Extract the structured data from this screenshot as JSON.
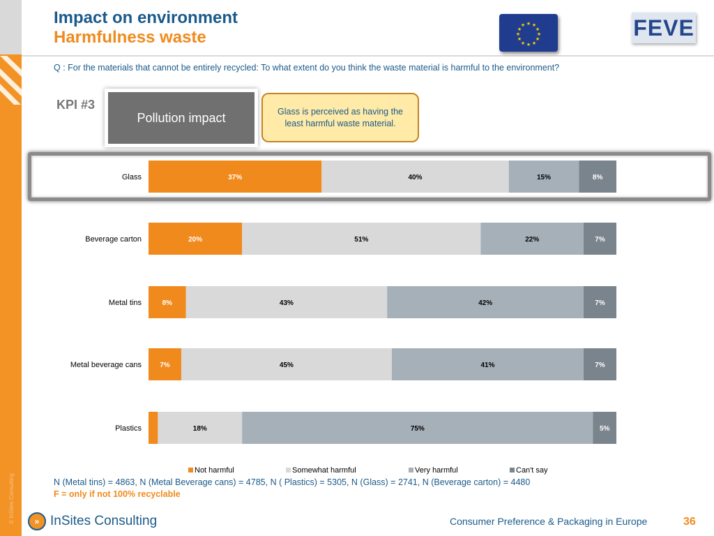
{
  "header": {
    "title": "Impact on environment",
    "subtitle": "Harmfulness waste",
    "logo_text": "FEVE"
  },
  "question": "Q : For the materials that cannot be entirely recycled: To what extent do you think the waste material is harmful to the environment?",
  "kpi_label": "KPI #3",
  "pollution_label": "Pollution impact",
  "callout": "Glass is perceived as having the least harmful waste material.",
  "notes": {
    "sample_sizes": "N (Metal tins) =  4863, N (Metal Beverage cans) = 4785, N ( Plastics) = 5305, N (Glass) = 2741, N (Beverage carton) = 4480",
    "recyclable": "F = only if not 100% recyclable"
  },
  "footer": {
    "copyright": "© InSites Consulting",
    "brand": "InSites Consulting",
    "report": "Consumer Preference & Packaging in Europe",
    "page": "36"
  },
  "colors": {
    "accent": "#f39325",
    "title_blue": "#1a5a8a",
    "series": [
      "#f08a1c",
      "#d9d9d9",
      "#a6b0b8",
      "#7a848d"
    ]
  },
  "chart_data": {
    "type": "bar",
    "orientation": "horizontal",
    "stacked": true,
    "categories": [
      "Glass",
      "Beverage carton",
      "Metal tins",
      "Metal beverage cans",
      "Plastics"
    ],
    "series": [
      {
        "name": "Not harmful",
        "values": [
          37,
          20,
          8,
          7,
          2
        ],
        "labels": [
          "37%",
          "20%",
          "8%",
          "7%",
          ""
        ]
      },
      {
        "name": "Somewhat harmful",
        "values": [
          40,
          51,
          43,
          45,
          18
        ],
        "labels": [
          "40%",
          "51%",
          "43%",
          "45%",
          "18%"
        ]
      },
      {
        "name": "Very harmful",
        "values": [
          15,
          22,
          42,
          41,
          75
        ],
        "labels": [
          "15%",
          "22%",
          "42%",
          "41%",
          "75%"
        ]
      },
      {
        "name": "Can't say",
        "values": [
          8,
          7,
          7,
          7,
          5
        ],
        "labels": [
          "8%",
          "7%",
          "7%",
          "7%",
          "5%"
        ]
      }
    ],
    "xlim": [
      0,
      100
    ],
    "legend": "bottom",
    "grid": false
  }
}
